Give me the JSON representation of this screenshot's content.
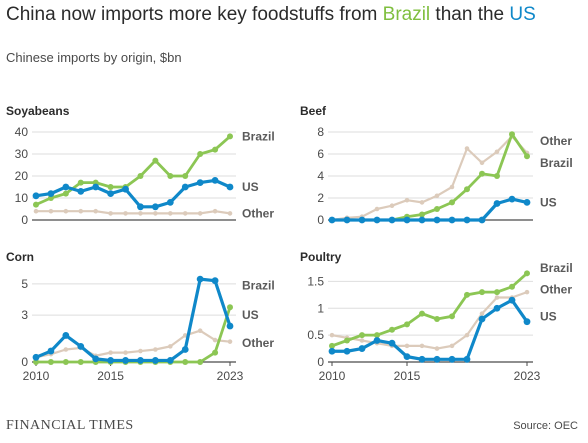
{
  "headline": {
    "part1": "China now imports more key foodstuffs from ",
    "brazil": "Brazil",
    "part2": " than the ",
    "us": "US"
  },
  "subtitle": "Chinese imports by origin, $bn",
  "colors": {
    "Brazil": "#8cc654",
    "US": "#0f88c9",
    "Other": "#dccbbb"
  },
  "chart_data": [
    {
      "type": "line",
      "title": "Soyabeans",
      "x": [
        2010,
        2011,
        2012,
        2013,
        2014,
        2015,
        2016,
        2017,
        2018,
        2019,
        2020,
        2021,
        2022,
        2023
      ],
      "ylim": [
        0,
        40
      ],
      "yticks": [
        0,
        10,
        20,
        30,
        40
      ],
      "ytick_labels": [
        "0",
        "10",
        "20",
        "30",
        "40"
      ],
      "xticks": [],
      "xtick_labels": [],
      "series": [
        {
          "name": "Other",
          "values": [
            4,
            4,
            4,
            4,
            4,
            3,
            3,
            3,
            3,
            3,
            3,
            3,
            4,
            3
          ]
        },
        {
          "name": "Brazil",
          "values": [
            7,
            10,
            12,
            17,
            17,
            15,
            15,
            20,
            27,
            20,
            20,
            30,
            32,
            38
          ]
        },
        {
          "name": "US",
          "values": [
            11,
            12,
            15,
            13,
            15,
            12,
            14,
            6,
            6,
            8,
            15,
            17,
            18,
            15
          ]
        }
      ],
      "labels": [
        "Brazil",
        "US",
        "Other"
      ]
    },
    {
      "type": "line",
      "title": "Beef",
      "x": [
        2010,
        2011,
        2012,
        2013,
        2014,
        2015,
        2016,
        2017,
        2018,
        2019,
        2020,
        2021,
        2022,
        2023
      ],
      "ylim": [
        0,
        8
      ],
      "yticks": [
        0,
        2,
        4,
        6,
        8
      ],
      "ytick_labels": [
        "0",
        "2",
        "4",
        "6",
        "8"
      ],
      "xticks": [],
      "xtick_labels": [],
      "series": [
        {
          "name": "Other",
          "values": [
            0,
            0.2,
            0.3,
            1,
            1.3,
            1.8,
            1.6,
            2.2,
            3,
            6.5,
            5.2,
            6.2,
            7.6,
            6.1
          ]
        },
        {
          "name": "Brazil",
          "values": [
            0,
            0,
            0,
            0,
            0,
            0.3,
            0.5,
            1,
            1.6,
            2.8,
            4.2,
            4,
            7.8,
            5.8
          ]
        },
        {
          "name": "US",
          "values": [
            0,
            0,
            0,
            0,
            0,
            0,
            0,
            0,
            0,
            0,
            0,
            1.5,
            1.9,
            1.6
          ]
        }
      ],
      "labels": [
        "Other",
        "Brazil",
        "US"
      ]
    },
    {
      "type": "line",
      "title": "Corn",
      "x": [
        2010,
        2011,
        2012,
        2013,
        2014,
        2015,
        2016,
        2017,
        2018,
        2019,
        2020,
        2021,
        2022,
        2023
      ],
      "ylim": [
        0,
        5.5
      ],
      "yticks": [
        0,
        3,
        5
      ],
      "ytick_labels": [
        "0",
        "3",
        "5"
      ],
      "xticks": [
        2010,
        2015,
        2023
      ],
      "xtick_labels": [
        "2010",
        "2015",
        "2023"
      ],
      "series": [
        {
          "name": "Other",
          "values": [
            0.3,
            0.5,
            0.8,
            0.9,
            0.4,
            0.6,
            0.6,
            0.7,
            0.8,
            1,
            1.7,
            2,
            1.4,
            1.3
          ]
        },
        {
          "name": "Brazil",
          "values": [
            0,
            0,
            0,
            0,
            0,
            0,
            0,
            0,
            0,
            0,
            0,
            0,
            0.6,
            3.5
          ]
        },
        {
          "name": "US",
          "values": [
            0.3,
            0.7,
            1.7,
            1,
            0.2,
            0.1,
            0.1,
            0.1,
            0.1,
            0.1,
            0.8,
            5.3,
            5.2,
            2.3
          ]
        }
      ],
      "labels": [
        "Brazil",
        "US",
        "Other"
      ]
    },
    {
      "type": "line",
      "title": "Poultry",
      "x": [
        2010,
        2011,
        2012,
        2013,
        2014,
        2015,
        2016,
        2017,
        2018,
        2019,
        2020,
        2021,
        2022,
        2023
      ],
      "ylim": [
        0,
        1.6
      ],
      "yticks": [
        0,
        0.5,
        1,
        1.5
      ],
      "ytick_labels": [
        "0",
        "0.5",
        "1",
        "1.5"
      ],
      "xticks": [
        2010,
        2015,
        2023
      ],
      "xtick_labels": [
        "2010",
        "2015",
        "2023"
      ],
      "series": [
        {
          "name": "Other",
          "values": [
            0.5,
            0.45,
            0.4,
            0.35,
            0.3,
            0.3,
            0.3,
            0.25,
            0.3,
            0.5,
            0.9,
            1.2,
            1.2,
            1.3
          ]
        },
        {
          "name": "Brazil",
          "values": [
            0.3,
            0.4,
            0.5,
            0.5,
            0.6,
            0.7,
            0.9,
            0.8,
            0.85,
            1.25,
            1.3,
            1.3,
            1.4,
            1.65
          ]
        },
        {
          "name": "US",
          "values": [
            0.2,
            0.2,
            0.25,
            0.4,
            0.35,
            0.1,
            0.05,
            0.05,
            0.05,
            0.05,
            0.8,
            1,
            1.15,
            0.75
          ]
        }
      ],
      "labels": [
        "Brazil",
        "Other",
        "US"
      ]
    }
  ],
  "footer": {
    "logo": "FINANCIAL TIMES",
    "source": "Source: OEC"
  }
}
